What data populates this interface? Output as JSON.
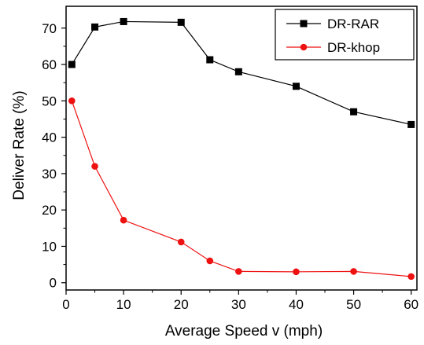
{
  "chart_data": {
    "type": "line",
    "title": "",
    "xlabel": "Average Speed v (mph)",
    "ylabel": "Deliver Rate (%)",
    "xlim": [
      0,
      61
    ],
    "ylim": [
      -2,
      76
    ],
    "x_ticks": [
      0,
      10,
      20,
      30,
      40,
      50,
      60
    ],
    "y_ticks": [
      0,
      10,
      20,
      30,
      40,
      50,
      60,
      70
    ],
    "x_tick_labels": [
      "0",
      "10",
      "20",
      "30",
      "40",
      "50",
      "60"
    ],
    "y_tick_labels": [
      "0",
      "10",
      "20",
      "30",
      "40",
      "50",
      "60",
      "70"
    ],
    "legend_position": "top-right",
    "grid": false,
    "series": [
      {
        "name": "DR-RAR",
        "color": "#000000",
        "marker": "square",
        "x": [
          1,
          5,
          10,
          20,
          25,
          30,
          40,
          50,
          60
        ],
        "y": [
          60,
          70.3,
          71.8,
          71.6,
          61.3,
          58,
          54,
          47,
          43.5
        ]
      },
      {
        "name": "DR-khop",
        "color": "#ee1111",
        "marker": "circle",
        "x": [
          1,
          5,
          10,
          20,
          25,
          30,
          40,
          50,
          60
        ],
        "y": [
          50,
          32,
          17.2,
          11.2,
          6,
          3.1,
          3,
          3.1,
          1.7
        ]
      }
    ]
  }
}
